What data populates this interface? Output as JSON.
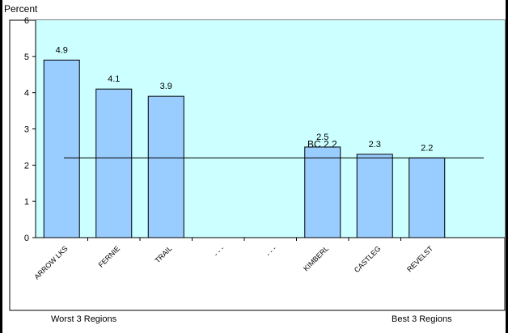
{
  "chart_data": {
    "type": "bar",
    "title": "",
    "ylabel": "Percent",
    "xlabel": "",
    "categories": [
      "ARROW LKS",
      "FERNIE",
      "TRAIL",
      "- - -",
      "- - -",
      "KIMBERL",
      "CASTLEG",
      "REVELST"
    ],
    "series": [
      {
        "values": [
          4.9,
          4.1,
          3.9,
          null,
          null,
          2.5,
          2.3,
          2.2
        ]
      }
    ],
    "data_labels": [
      "4.9",
      "4.1",
      "3.9",
      "",
      "",
      "2.5",
      "2.3",
      "2.2"
    ],
    "ylim": [
      0,
      6
    ],
    "yticks": [
      0,
      1,
      2,
      3,
      4,
      5,
      6
    ],
    "reference_line": {
      "label": "BC 2.2",
      "value": 2.2
    },
    "grid": false,
    "bar_color": "#99ccff",
    "plot_background": "#ccffff",
    "group_labels": {
      "worst": "Worst 3 Regions",
      "best": "Best 3 Regions"
    }
  }
}
